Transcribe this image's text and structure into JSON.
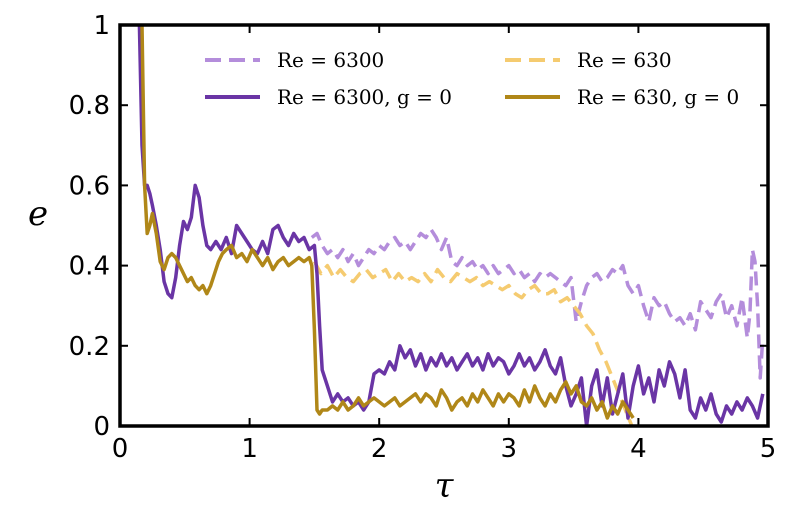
{
  "chart_data": {
    "type": "line",
    "title": "",
    "xlabel": "τ",
    "ylabel": "e",
    "xlim": [
      0,
      5
    ],
    "ylim": [
      0,
      1
    ],
    "xticks": [
      "0",
      "1",
      "2",
      "3",
      "4",
      "5"
    ],
    "yticks": [
      "0",
      "0.2",
      "0.4",
      "0.6",
      "0.8",
      "1"
    ],
    "grid": false,
    "legend_position": "top",
    "series": [
      {
        "name": "Re = 6300",
        "color": "#b48ddb",
        "style": "dashed",
        "x": [
          1.48,
          1.52,
          1.56,
          1.6,
          1.64,
          1.68,
          1.72,
          1.76,
          1.8,
          1.84,
          1.88,
          1.92,
          1.96,
          2.0,
          2.04,
          2.08,
          2.12,
          2.16,
          2.2,
          2.24,
          2.28,
          2.32,
          2.36,
          2.4,
          2.44,
          2.48,
          2.52,
          2.56,
          2.6,
          2.64,
          2.68,
          2.72,
          2.76,
          2.8,
          2.84,
          2.88,
          2.92,
          2.96,
          3.0,
          3.04,
          3.08,
          3.12,
          3.16,
          3.2,
          3.24,
          3.28,
          3.32,
          3.36,
          3.4,
          3.44,
          3.48,
          3.52,
          3.56,
          3.6,
          3.64,
          3.68,
          3.72,
          3.76,
          3.8,
          3.84,
          3.88,
          3.92,
          3.96,
          4.0,
          4.04,
          4.08,
          4.12,
          4.16,
          4.2,
          4.24,
          4.28,
          4.32,
          4.36,
          4.4,
          4.44,
          4.48,
          4.52,
          4.56,
          4.6,
          4.64,
          4.68,
          4.72,
          4.76,
          4.8,
          4.84,
          4.86,
          4.88,
          4.9,
          4.92,
          4.94,
          4.96
        ],
        "y": [
          0.47,
          0.48,
          0.45,
          0.43,
          0.44,
          0.42,
          0.44,
          0.41,
          0.43,
          0.4,
          0.42,
          0.44,
          0.43,
          0.45,
          0.44,
          0.46,
          0.47,
          0.45,
          0.46,
          0.44,
          0.46,
          0.48,
          0.47,
          0.49,
          0.47,
          0.44,
          0.47,
          0.41,
          0.4,
          0.42,
          0.4,
          0.41,
          0.39,
          0.4,
          0.38,
          0.4,
          0.38,
          0.39,
          0.4,
          0.38,
          0.39,
          0.37,
          0.38,
          0.36,
          0.38,
          0.37,
          0.38,
          0.37,
          0.36,
          0.35,
          0.37,
          0.26,
          0.31,
          0.35,
          0.37,
          0.38,
          0.36,
          0.37,
          0.39,
          0.38,
          0.4,
          0.35,
          0.33,
          0.35,
          0.3,
          0.26,
          0.32,
          0.3,
          0.31,
          0.28,
          0.26,
          0.27,
          0.25,
          0.28,
          0.24,
          0.31,
          0.29,
          0.27,
          0.31,
          0.33,
          0.27,
          0.3,
          0.25,
          0.32,
          0.22,
          0.28,
          0.44,
          0.41,
          0.3,
          0.12,
          0.22
        ],
        "linewidth": 3.5
      },
      {
        "name": "Re = 630",
        "color": "#f5cb70",
        "style": "dashed",
        "x": [
          1.5,
          1.55,
          1.6,
          1.65,
          1.7,
          1.75,
          1.8,
          1.85,
          1.9,
          1.95,
          2.0,
          2.05,
          2.1,
          2.15,
          2.2,
          2.25,
          2.3,
          2.35,
          2.4,
          2.45,
          2.5,
          2.55,
          2.6,
          2.65,
          2.7,
          2.75,
          2.8,
          2.85,
          2.9,
          2.95,
          3.0,
          3.05,
          3.1,
          3.15,
          3.2,
          3.25,
          3.3,
          3.35,
          3.4,
          3.45,
          3.5,
          3.55,
          3.6,
          3.65,
          3.7,
          3.75,
          3.8,
          3.85,
          3.9,
          3.95
        ],
        "y": [
          0.41,
          0.38,
          0.4,
          0.37,
          0.39,
          0.37,
          0.36,
          0.38,
          0.39,
          0.37,
          0.38,
          0.39,
          0.36,
          0.38,
          0.36,
          0.37,
          0.36,
          0.38,
          0.36,
          0.39,
          0.37,
          0.36,
          0.38,
          0.37,
          0.36,
          0.37,
          0.35,
          0.36,
          0.35,
          0.34,
          0.35,
          0.33,
          0.32,
          0.34,
          0.35,
          0.33,
          0.33,
          0.34,
          0.31,
          0.32,
          0.3,
          0.28,
          0.25,
          0.23,
          0.19,
          0.16,
          0.12,
          0.08,
          0.04,
          0.0
        ],
        "linewidth": 3.5
      },
      {
        "name": "Re = 6300,  g = 0",
        "color": "#6a35a5",
        "style": "solid",
        "x": [
          0.15,
          0.17,
          0.19,
          0.21,
          0.23,
          0.25,
          0.28,
          0.31,
          0.34,
          0.37,
          0.4,
          0.43,
          0.46,
          0.49,
          0.52,
          0.55,
          0.58,
          0.61,
          0.64,
          0.67,
          0.7,
          0.74,
          0.78,
          0.82,
          0.86,
          0.9,
          0.94,
          0.98,
          1.02,
          1.06,
          1.1,
          1.14,
          1.18,
          1.22,
          1.26,
          1.3,
          1.34,
          1.38,
          1.42,
          1.46,
          1.5,
          1.52,
          1.54,
          1.56,
          1.58,
          1.6,
          1.64,
          1.68,
          1.72,
          1.76,
          1.8,
          1.84,
          1.88,
          1.92,
          1.96,
          2.0,
          2.04,
          2.08,
          2.12,
          2.16,
          2.2,
          2.24,
          2.28,
          2.32,
          2.36,
          2.4,
          2.44,
          2.48,
          2.52,
          2.56,
          2.6,
          2.64,
          2.68,
          2.72,
          2.76,
          2.8,
          2.84,
          2.88,
          2.92,
          2.96,
          3.0,
          3.04,
          3.08,
          3.12,
          3.16,
          3.2,
          3.24,
          3.28,
          3.32,
          3.36,
          3.4,
          3.44,
          3.48,
          3.52,
          3.56,
          3.6,
          3.64,
          3.68,
          3.72,
          3.76,
          3.8,
          3.84,
          3.88,
          3.92,
          3.96,
          4.0,
          4.04,
          4.08,
          4.12,
          4.16,
          4.2,
          4.24,
          4.28,
          4.32,
          4.36,
          4.4,
          4.44,
          4.48,
          4.52,
          4.56,
          4.6,
          4.64,
          4.68,
          4.72,
          4.76,
          4.8,
          4.84,
          4.88,
          4.92,
          4.96
        ],
        "y": [
          1.0,
          0.7,
          0.6,
          0.6,
          0.58,
          0.55,
          0.5,
          0.44,
          0.36,
          0.33,
          0.32,
          0.37,
          0.45,
          0.51,
          0.49,
          0.52,
          0.6,
          0.57,
          0.5,
          0.45,
          0.44,
          0.46,
          0.44,
          0.47,
          0.43,
          0.5,
          0.48,
          0.46,
          0.44,
          0.43,
          0.46,
          0.43,
          0.49,
          0.5,
          0.47,
          0.45,
          0.48,
          0.46,
          0.47,
          0.44,
          0.45,
          0.38,
          0.25,
          0.14,
          0.12,
          0.1,
          0.06,
          0.08,
          0.06,
          0.07,
          0.05,
          0.06,
          0.04,
          0.06,
          0.13,
          0.14,
          0.13,
          0.16,
          0.14,
          0.2,
          0.17,
          0.19,
          0.15,
          0.18,
          0.14,
          0.17,
          0.15,
          0.18,
          0.15,
          0.17,
          0.14,
          0.16,
          0.18,
          0.15,
          0.17,
          0.14,
          0.18,
          0.15,
          0.17,
          0.16,
          0.13,
          0.15,
          0.18,
          0.15,
          0.17,
          0.14,
          0.16,
          0.19,
          0.15,
          0.13,
          0.17,
          0.1,
          0.05,
          0.08,
          0.12,
          0.0,
          0.1,
          0.14,
          0.05,
          0.12,
          0.03,
          0.08,
          0.13,
          0.02,
          0.1,
          0.15,
          0.08,
          0.12,
          0.06,
          0.14,
          0.1,
          0.16,
          0.13,
          0.07,
          0.14,
          0.04,
          0.02,
          0.07,
          0.04,
          0.08,
          0.03,
          0.01,
          0.05,
          0.03,
          0.06,
          0.04,
          0.07,
          0.05,
          0.02,
          0.08
        ],
        "linewidth": 3.5
      },
      {
        "name": "Re = 630,  g = 0",
        "color": "#b08718",
        "style": "solid",
        "x": [
          0.17,
          0.19,
          0.21,
          0.23,
          0.25,
          0.28,
          0.31,
          0.34,
          0.37,
          0.4,
          0.43,
          0.46,
          0.49,
          0.52,
          0.55,
          0.58,
          0.61,
          0.64,
          0.67,
          0.7,
          0.73,
          0.76,
          0.79,
          0.82,
          0.86,
          0.9,
          0.94,
          0.98,
          1.02,
          1.06,
          1.1,
          1.14,
          1.18,
          1.22,
          1.26,
          1.3,
          1.34,
          1.38,
          1.42,
          1.46,
          1.48,
          1.5,
          1.52,
          1.54,
          1.56,
          1.6,
          1.64,
          1.68,
          1.72,
          1.76,
          1.8,
          1.84,
          1.88,
          1.92,
          1.96,
          2.0,
          2.04,
          2.08,
          2.12,
          2.16,
          2.2,
          2.24,
          2.28,
          2.32,
          2.36,
          2.4,
          2.44,
          2.48,
          2.52,
          2.56,
          2.6,
          2.64,
          2.68,
          2.72,
          2.76,
          2.8,
          2.84,
          2.88,
          2.92,
          2.96,
          3.0,
          3.04,
          3.08,
          3.12,
          3.16,
          3.2,
          3.24,
          3.28,
          3.32,
          3.36,
          3.4,
          3.44,
          3.48,
          3.52,
          3.56,
          3.6,
          3.64,
          3.68,
          3.72,
          3.76,
          3.8,
          3.84,
          3.88,
          3.92,
          3.96
        ],
        "y": [
          1.0,
          0.6,
          0.48,
          0.5,
          0.53,
          0.48,
          0.41,
          0.39,
          0.42,
          0.43,
          0.42,
          0.4,
          0.38,
          0.36,
          0.37,
          0.35,
          0.34,
          0.35,
          0.33,
          0.35,
          0.38,
          0.41,
          0.43,
          0.44,
          0.45,
          0.42,
          0.43,
          0.41,
          0.44,
          0.42,
          0.4,
          0.42,
          0.39,
          0.41,
          0.42,
          0.4,
          0.41,
          0.42,
          0.41,
          0.42,
          0.4,
          0.24,
          0.04,
          0.03,
          0.04,
          0.04,
          0.05,
          0.04,
          0.06,
          0.04,
          0.05,
          0.07,
          0.05,
          0.06,
          0.07,
          0.06,
          0.05,
          0.06,
          0.07,
          0.05,
          0.06,
          0.07,
          0.08,
          0.06,
          0.08,
          0.07,
          0.05,
          0.09,
          0.07,
          0.04,
          0.06,
          0.07,
          0.05,
          0.08,
          0.06,
          0.09,
          0.07,
          0.05,
          0.08,
          0.06,
          0.08,
          0.07,
          0.05,
          0.09,
          0.06,
          0.1,
          0.07,
          0.05,
          0.08,
          0.06,
          0.09,
          0.11,
          0.08,
          0.1,
          0.06,
          0.05,
          0.07,
          0.04,
          0.06,
          0.02,
          0.05,
          0.03,
          0.06,
          0.04,
          0.02
        ],
        "linewidth": 3.5
      }
    ],
    "legend": {
      "entries": [
        {
          "label": "Re = 6300",
          "series": 0
        },
        {
          "label": "Re = 630",
          "series": 1
        },
        {
          "label": "Re = 6300,  g = 0",
          "series": 2
        },
        {
          "label": "Re = 630,  g = 0",
          "series": 3
        }
      ]
    }
  }
}
